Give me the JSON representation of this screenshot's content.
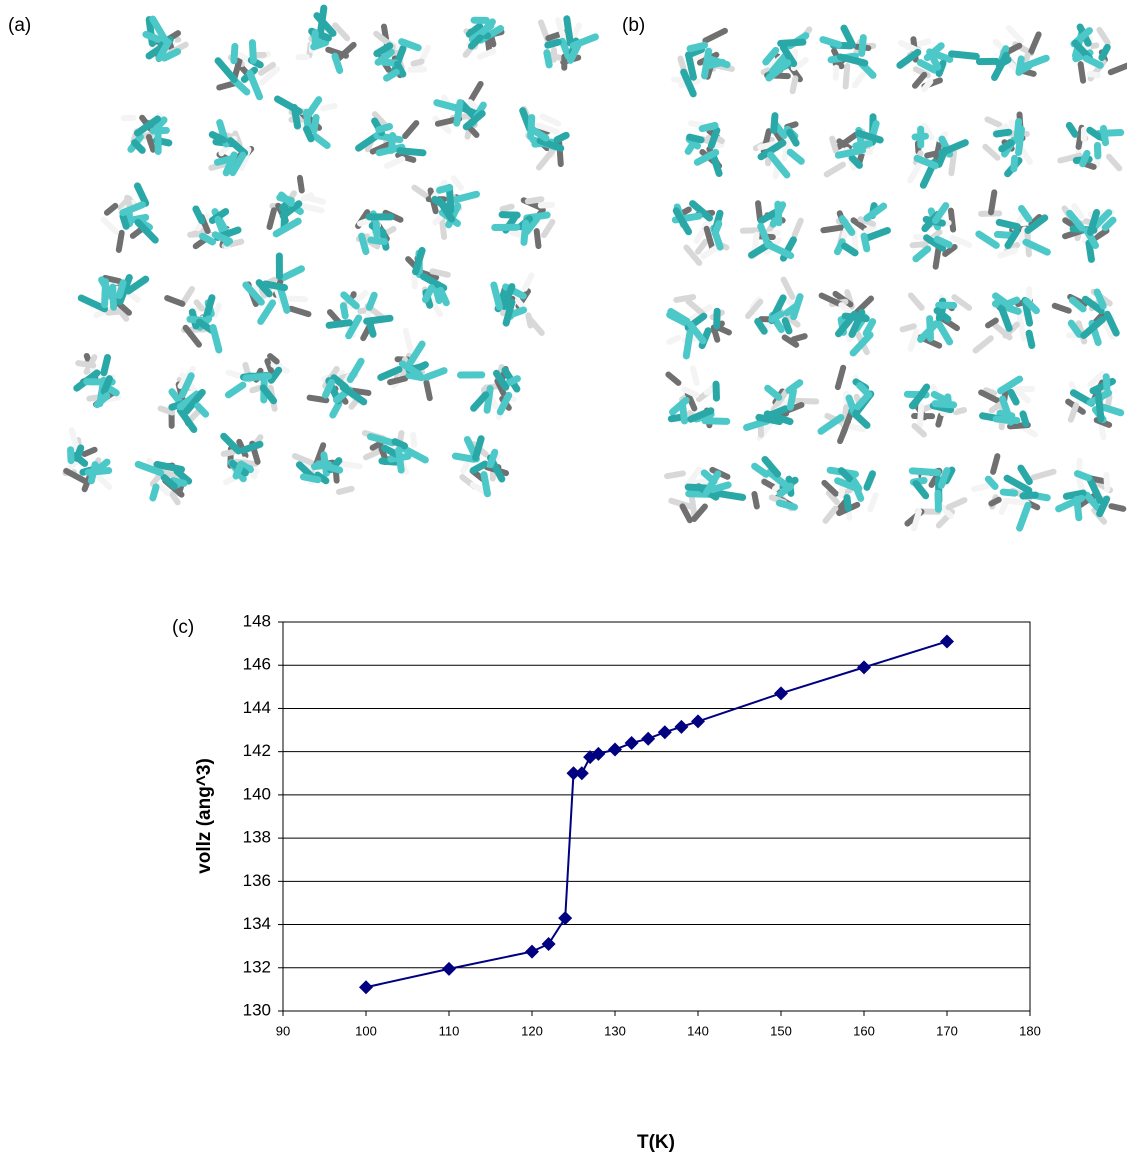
{
  "panel_labels": [
    "(a)",
    "(b)",
    "(c)"
  ],
  "chart_data": {
    "type": "line",
    "x_label": "T(K)",
    "y_label": "vollz  (ang^3)",
    "x": [
      100,
      110,
      120,
      122,
      124,
      125,
      126,
      127,
      128,
      130,
      132,
      134,
      136,
      138,
      140,
      150,
      160,
      170
    ],
    "series": [
      {
        "color": "#000080",
        "values": [
          131.1,
          131.95,
          132.75,
          133.1,
          134.3,
          141.0,
          141.0,
          141.75,
          141.9,
          142.1,
          142.4,
          142.6,
          142.9,
          143.15,
          143.4,
          144.7,
          145.9,
          147.1
        ]
      }
    ],
    "xlim": [
      90,
      180
    ],
    "xticks": [
      90,
      100,
      110,
      120,
      130,
      140,
      150,
      160,
      170,
      180
    ],
    "ylim": [
      130,
      148
    ],
    "yticks": [
      130,
      132,
      134,
      136,
      138,
      140,
      142,
      144,
      146,
      148
    ],
    "grid": true
  }
}
